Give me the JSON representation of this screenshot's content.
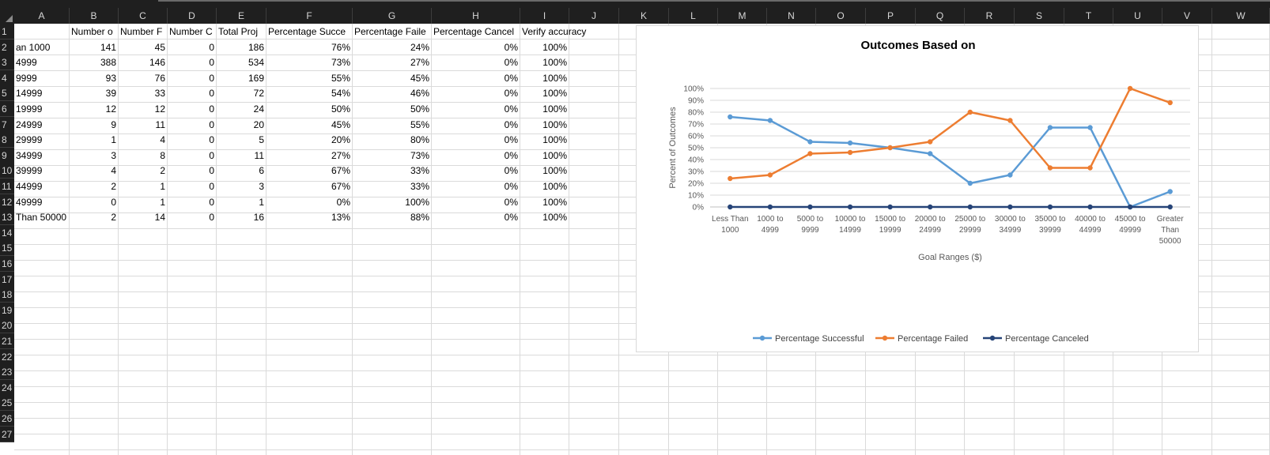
{
  "columns": [
    "A",
    "B",
    "C",
    "D",
    "E",
    "F",
    "G",
    "H",
    "I",
    "J",
    "K",
    "L",
    "M",
    "N",
    "O",
    "P",
    "Q",
    "R",
    "S",
    "T",
    "U",
    "V",
    "W"
  ],
  "row_numbers": [
    "1",
    "2",
    "3",
    "4",
    "5",
    "6",
    "7",
    "8",
    "9",
    "10",
    "11",
    "12",
    "13",
    "14",
    "15",
    "16",
    "17",
    "18",
    "19",
    "20",
    "21",
    "22",
    "23",
    "24",
    "25",
    "26",
    "27"
  ],
  "sheet": {
    "headers": [
      "",
      "Number o",
      "Number F",
      "Number C",
      "Total Proj",
      "Percentage Succe",
      "Percentage Faile",
      "Percentage Cancel",
      "Verify accuracy"
    ],
    "rows": [
      [
        "an 1000",
        "141",
        "45",
        "0",
        "186",
        "76%",
        "24%",
        "0%",
        "100%"
      ],
      [
        "4999",
        "388",
        "146",
        "0",
        "534",
        "73%",
        "27%",
        "0%",
        "100%"
      ],
      [
        "9999",
        "93",
        "76",
        "0",
        "169",
        "55%",
        "45%",
        "0%",
        "100%"
      ],
      [
        "14999",
        "39",
        "33",
        "0",
        "72",
        "54%",
        "46%",
        "0%",
        "100%"
      ],
      [
        "19999",
        "12",
        "12",
        "0",
        "24",
        "50%",
        "50%",
        "0%",
        "100%"
      ],
      [
        "24999",
        "9",
        "11",
        "0",
        "20",
        "45%",
        "55%",
        "0%",
        "100%"
      ],
      [
        "29999",
        "1",
        "4",
        "0",
        "5",
        "20%",
        "80%",
        "0%",
        "100%"
      ],
      [
        "34999",
        "3",
        "8",
        "0",
        "11",
        "27%",
        "73%",
        "0%",
        "100%"
      ],
      [
        "39999",
        "4",
        "2",
        "0",
        "6",
        "67%",
        "33%",
        "0%",
        "100%"
      ],
      [
        "44999",
        "2",
        "1",
        "0",
        "3",
        "67%",
        "33%",
        "0%",
        "100%"
      ],
      [
        "49999",
        "0",
        "1",
        "0",
        "1",
        "0%",
        "100%",
        "0%",
        "100%"
      ],
      [
        "Than 50000",
        "2",
        "14",
        "0",
        "16",
        "13%",
        "88%",
        "0%",
        "100%"
      ]
    ]
  },
  "chart_data": {
    "type": "line",
    "title": "Outcomes Based on",
    "xlabel": "Goal Ranges ($)",
    "ylabel": "Percent of Outcomes",
    "ylim": [
      0,
      100
    ],
    "yticks": [
      "0%",
      "10%",
      "20%",
      "30%",
      "40%",
      "50%",
      "60%",
      "70%",
      "80%",
      "90%",
      "100%"
    ],
    "grid": true,
    "legend": "bottom",
    "categories": [
      [
        "Less Than",
        "1000"
      ],
      [
        "1000 to",
        "4999"
      ],
      [
        "5000 to",
        "9999"
      ],
      [
        "10000 to",
        "14999"
      ],
      [
        "15000 to",
        "19999"
      ],
      [
        "20000 to",
        "24999"
      ],
      [
        "25000 to",
        "29999"
      ],
      [
        "30000 to",
        "34999"
      ],
      [
        "35000 to",
        "39999"
      ],
      [
        "40000 to",
        "44999"
      ],
      [
        "45000 to",
        "49999"
      ],
      [
        "Greater",
        "Than",
        "50000"
      ]
    ],
    "series": [
      {
        "name": "Percentage Successful",
        "color": "#5b9bd5",
        "values": [
          76,
          73,
          55,
          54,
          50,
          45,
          20,
          27,
          67,
          67,
          0,
          13
        ]
      },
      {
        "name": "Percentage Failed",
        "color": "#ed7d31",
        "values": [
          24,
          27,
          45,
          46,
          50,
          55,
          80,
          73,
          33,
          33,
          100,
          88
        ]
      },
      {
        "name": "Percentage Canceled",
        "color": "#264478",
        "values": [
          0,
          0,
          0,
          0,
          0,
          0,
          0,
          0,
          0,
          0,
          0,
          0
        ]
      }
    ]
  }
}
